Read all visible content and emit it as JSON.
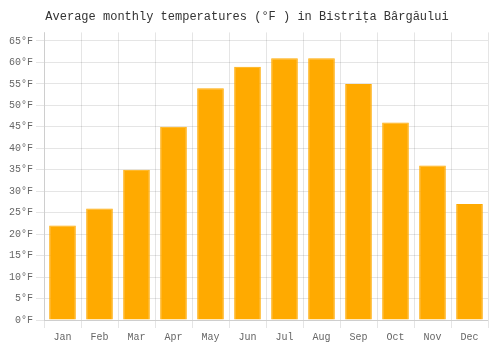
{
  "chart_data": {
    "type": "bar",
    "title": "Average monthly temperatures (°F ) in Bistrița Bârgăului",
    "categories": [
      "Jan",
      "Feb",
      "Mar",
      "Apr",
      "May",
      "Jun",
      "Jul",
      "Aug",
      "Sep",
      "Oct",
      "Nov",
      "Dec"
    ],
    "values": [
      22,
      26,
      35,
      45,
      54,
      59,
      61,
      61,
      55,
      46,
      36,
      27
    ],
    "color": "#FFAA00",
    "ylim": [
      0,
      67
    ],
    "yticks": [
      {
        "value": 0,
        "label": "0°F"
      },
      {
        "value": 5,
        "label": "5°F"
      },
      {
        "value": 10,
        "label": "10°F"
      },
      {
        "value": 15,
        "label": "15°F"
      },
      {
        "value": 20,
        "label": "20°F"
      },
      {
        "value": 25,
        "label": "25°F"
      },
      {
        "value": 30,
        "label": "30°F"
      },
      {
        "value": 35,
        "label": "35°F"
      },
      {
        "value": 40,
        "label": "40°F"
      },
      {
        "value": 45,
        "label": "45°F"
      },
      {
        "value": 50,
        "label": "50°F"
      },
      {
        "value": 55,
        "label": "55°F"
      },
      {
        "value": 60,
        "label": "60°F"
      },
      {
        "value": 65,
        "label": "65°F"
      }
    ],
    "grid": true
  }
}
